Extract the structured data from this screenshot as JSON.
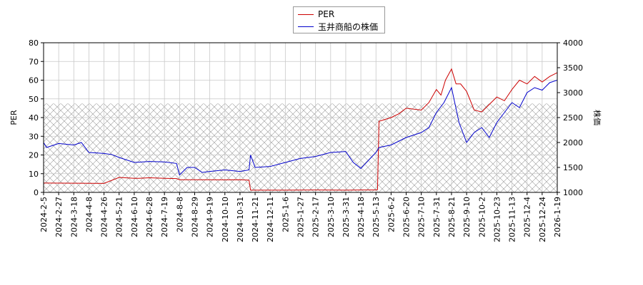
{
  "chart_data": {
    "type": "line",
    "title": "",
    "xlabel": "",
    "ylabel_left": "PER",
    "ylabel_right": "株価",
    "ylim_left": [
      0,
      80
    ],
    "ylim_right": [
      1000,
      4000
    ],
    "y_ticks_left": [
      "0",
      "10",
      "20",
      "30",
      "40",
      "50",
      "60",
      "70",
      "80"
    ],
    "y_ticks_right": [
      "1000",
      "1500",
      "2000",
      "2500",
      "3000",
      "3500",
      "4000"
    ],
    "x_ticks": [
      "2024-2-5",
      "2024-2-27",
      "2024-3-18",
      "2024-4-8",
      "2024-4-26",
      "2024-5-21",
      "2024-6-10",
      "2024-6-28",
      "2024-7-19",
      "2024-8-8",
      "2024-8-29",
      "2024-9-19",
      "2024-10-10",
      "2024-10-31",
      "2024-11-21",
      "2024-12-11",
      "2025-1-6",
      "2025-1-27",
      "2025-2-17",
      "2025-3-10",
      "2025-3-31",
      "2025-4-18",
      "2025-5-13",
      "2025-6-2",
      "2025-6-20",
      "2025-7-10",
      "2025-7-31",
      "2025-8-21",
      "2025-9-10",
      "2025-10-2",
      "2025-10-23",
      "2025-11-13",
      "2025-12-4",
      "2025-12-24",
      "2026-1-19"
    ],
    "grid": true,
    "legend_position": "top-center",
    "hatched_band": {
      "per_range": [
        0,
        47.5
      ]
    },
    "series": [
      {
        "name": "PER",
        "axis": "left",
        "color": "#cc0000",
        "x": [
          0,
          4,
          5,
          6,
          6.3,
          7,
          8,
          8.8,
          9,
          10,
          12,
          13,
          13.6,
          13.7,
          14,
          16,
          18,
          20,
          21,
          22,
          22.1,
          22.2,
          23,
          23.5,
          24,
          25,
          25.5,
          26,
          26.3,
          26.6,
          27,
          27.3,
          27.6,
          28,
          28.5,
          29,
          29.5,
          30,
          30.5,
          31,
          31.5,
          32,
          32.5,
          33,
          33.5,
          34,
          34.3,
          34.6,
          34.8,
          35
        ],
        "values": [
          5,
          4.8,
          8,
          7.5,
          7.5,
          7.8,
          7.5,
          7.4,
          6.8,
          6.8,
          6.7,
          6.8,
          6.5,
          1.2,
          1.2,
          1.2,
          1.3,
          1.2,
          1.3,
          1.3,
          1.5,
          38,
          40,
          42,
          45,
          44,
          48,
          55,
          52,
          60,
          66,
          58,
          58,
          54,
          44,
          43,
          47,
          51,
          49,
          55,
          60,
          58,
          62,
          59,
          62,
          64,
          64,
          62,
          64,
          72
        ]
      },
      {
        "name": "玉井商船の株価",
        "axis": "right",
        "color": "#0000cc",
        "x": [
          0,
          0.2,
          1,
          2,
          2.5,
          3,
          4,
          4.5,
          5,
          6,
          7,
          8,
          8.8,
          9,
          9.5,
          10,
          10.5,
          11,
          12,
          13,
          13.6,
          13.7,
          14,
          15,
          16,
          17,
          18,
          19,
          20,
          20.5,
          21,
          22,
          22.2,
          23,
          24,
          25,
          25.5,
          26,
          26.5,
          27,
          27.5,
          28,
          28.5,
          29,
          29.5,
          30,
          30.5,
          31,
          31.5,
          32,
          32.5,
          33,
          33.5,
          34,
          34.3,
          34.6,
          34.8,
          35
        ],
        "values": [
          2000,
          1900,
          1980,
          1950,
          2000,
          1800,
          1780,
          1760,
          1700,
          1600,
          1620,
          1610,
          1580,
          1350,
          1500,
          1500,
          1400,
          1420,
          1450,
          1420,
          1450,
          1750,
          1500,
          1520,
          1600,
          1680,
          1720,
          1800,
          1820,
          1600,
          1480,
          1800,
          1900,
          1950,
          2100,
          2200,
          2300,
          2600,
          2800,
          3100,
          2400,
          2000,
          2200,
          2300,
          2100,
          2400,
          2600,
          2800,
          2700,
          3000,
          3100,
          3050,
          3200,
          3250,
          3200,
          3150,
          3300,
          3500
        ]
      }
    ]
  }
}
